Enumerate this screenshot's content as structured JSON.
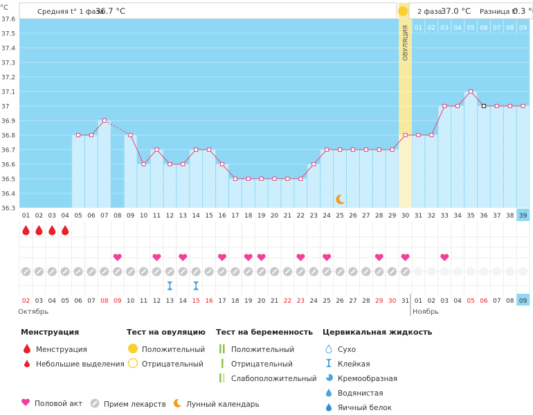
{
  "header": {
    "unit": "°C",
    "phase1_label": "Средняя t° 1 фаза",
    "phase1_value": "36.7 °C",
    "phase2_label": "2 фаза",
    "phase2_value": "37.0 °C",
    "diff_label": "Разница t°",
    "diff_value": "0.3 °C",
    "ovulation_label": "ОВУЛЯЦИЯ"
  },
  "chart_data": {
    "type": "line",
    "ylim": [
      36.3,
      37.6
    ],
    "y_ticks": [
      "37.6",
      "37.5",
      "37.4",
      "37.3",
      "37.2",
      "37.1",
      "37",
      "36.9",
      "36.8",
      "36.7",
      "36.6",
      "36.5",
      "36.4",
      "36.3"
    ],
    "cycle_days": [
      "01",
      "02",
      "03",
      "04",
      "05",
      "06",
      "07",
      "08",
      "09",
      "10",
      "11",
      "12",
      "13",
      "14",
      "15",
      "16",
      "17",
      "18",
      "19",
      "20",
      "21",
      "22",
      "23",
      "24",
      "25",
      "26",
      "27",
      "28",
      "29",
      "30",
      "31",
      "32",
      "33",
      "34",
      "35",
      "36",
      "37",
      "38",
      "39"
    ],
    "temperatures": [
      null,
      null,
      null,
      null,
      36.8,
      36.8,
      36.9,
      null,
      36.8,
      36.6,
      36.7,
      36.6,
      36.6,
      36.7,
      36.7,
      36.6,
      36.5,
      36.5,
      36.5,
      36.5,
      36.5,
      36.5,
      36.6,
      36.7,
      36.7,
      36.7,
      36.7,
      36.7,
      36.7,
      36.8,
      36.8,
      36.8,
      37.0,
      37.0,
      37.1,
      37.0,
      37.0,
      37.0,
      37.0
    ],
    "ovulation_day": "30",
    "next_cycle_days": [
      "01",
      "02",
      "03",
      "04",
      "05",
      "06",
      "07",
      "08",
      "09"
    ],
    "dates": [
      "02",
      "03",
      "04",
      "05",
      "06",
      "07",
      "08",
      "09",
      "10",
      "11",
      "12",
      "13",
      "14",
      "15",
      "16",
      "17",
      "18",
      "19",
      "20",
      "21",
      "22",
      "23",
      "24",
      "25",
      "26",
      "27",
      "28",
      "29",
      "30",
      "31",
      "01",
      "02",
      "03",
      "04",
      "05",
      "06",
      "07",
      "08",
      "09"
    ],
    "red_date_indices": [
      0,
      6,
      7,
      13,
      14,
      20,
      21,
      27,
      28,
      34,
      35
    ],
    "months": [
      "Октябрь",
      "Ноябрь"
    ],
    "menstruation_days": [
      "01",
      "02",
      "03",
      "04"
    ],
    "intercourse_days": [
      "08",
      "11",
      "13",
      "16",
      "18",
      "19",
      "22",
      "24",
      "28",
      "30",
      "33"
    ],
    "medication_days": [
      "01",
      "02",
      "03",
      "04",
      "05",
      "06",
      "07",
      "08",
      "09",
      "10",
      "11",
      "12",
      "13",
      "14",
      "15",
      "16",
      "17",
      "18",
      "19",
      "20",
      "21",
      "22",
      "23",
      "24",
      "25",
      "26",
      "27",
      "28",
      "29",
      "30"
    ],
    "sticky_mucus_days": [
      "12",
      "14"
    ],
    "moon_day": "25",
    "colors": {
      "bg": "#8fd8f5",
      "bar": "#cdeefc",
      "line": "#e8467c",
      "ovulation": "#f7e9a0",
      "menstruation": "#e8202a",
      "heart": "#f0409a",
      "pill": "#c8c8c8",
      "moon": "#f39b1c"
    }
  },
  "legend": {
    "menstruation": {
      "title": "Менструация",
      "items": [
        "Менструация",
        "Небольшие выделения"
      ]
    },
    "ovulation_test": {
      "title": "Тест на овуляцию",
      "items": [
        "Положительный",
        "Отрицательный"
      ]
    },
    "pregnancy_test": {
      "title": "Тест на беременность",
      "items": [
        "Положительный",
        "Отрицательный",
        "Слабоположительный"
      ]
    },
    "cervical": {
      "title": "Цервикальная жидкость",
      "items": [
        "Сухо",
        "Клейкая",
        "Кремообразная",
        "Водянистая",
        "Яичный белок"
      ]
    },
    "bottom": [
      "Половой акт",
      "Прием лекарств",
      "Лунный календарь"
    ]
  }
}
